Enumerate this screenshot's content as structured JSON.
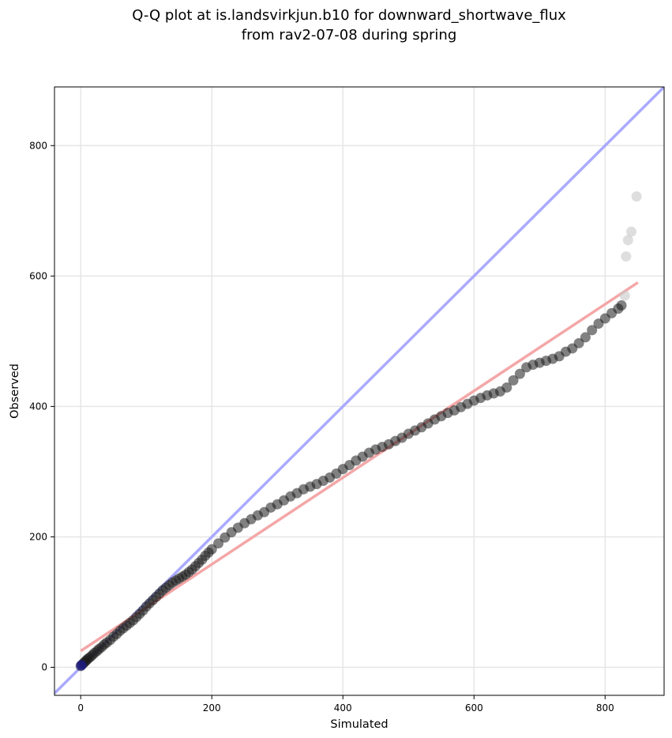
{
  "chart_data": {
    "type": "scatter",
    "title_lines": [
      "Q-Q plot at is.landsvirkjun.b10 for downward_shortwave_flux",
      "from rav2-07-08 during spring"
    ],
    "xlabel": "Simulated",
    "ylabel": "Observed",
    "xlim": [
      -40,
      890
    ],
    "ylim": [
      -43,
      890
    ],
    "x_ticks": [
      0,
      200,
      400,
      600,
      800
    ],
    "y_ticks": [
      0,
      200,
      400,
      600,
      800
    ],
    "grid": true,
    "reference_lines": [
      {
        "kind": "identity",
        "color": "#aaaaff",
        "points": [
          [
            -40,
            -40
          ],
          [
            890,
            890
          ]
        ]
      },
      {
        "kind": "fit",
        "color": "#f4a7a7",
        "points": [
          [
            0,
            25
          ],
          [
            850,
            590
          ]
        ]
      }
    ],
    "series": [
      {
        "color": "#1a1a1a",
        "points": [
          [
            0,
            2
          ],
          [
            2,
            4
          ],
          [
            4,
            6
          ],
          [
            6,
            8
          ],
          [
            8,
            10
          ],
          [
            10,
            12
          ],
          [
            12,
            14
          ],
          [
            15,
            16
          ],
          [
            18,
            19
          ],
          [
            21,
            22
          ],
          [
            25,
            25
          ],
          [
            28,
            28
          ],
          [
            32,
            31
          ],
          [
            36,
            35
          ],
          [
            40,
            38
          ],
          [
            45,
            42
          ],
          [
            50,
            47
          ],
          [
            55,
            51
          ],
          [
            60,
            56
          ],
          [
            65,
            60
          ],
          [
            70,
            64
          ],
          [
            75,
            68
          ],
          [
            80,
            72
          ],
          [
            85,
            77
          ],
          [
            90,
            82
          ],
          [
            95,
            87
          ],
          [
            100,
            93
          ],
          [
            105,
            98
          ],
          [
            110,
            103
          ],
          [
            115,
            108
          ],
          [
            120,
            113
          ],
          [
            125,
            118
          ],
          [
            130,
            122
          ],
          [
            135,
            126
          ],
          [
            140,
            130
          ],
          [
            145,
            133
          ],
          [
            150,
            136
          ],
          [
            155,
            139
          ],
          [
            160,
            142
          ],
          [
            165,
            146
          ],
          [
            170,
            150
          ],
          [
            175,
            155
          ],
          [
            180,
            160
          ],
          [
            185,
            165
          ],
          [
            190,
            171
          ],
          [
            195,
            176
          ],
          [
            200,
            181
          ],
          [
            210,
            190
          ],
          [
            220,
            199
          ],
          [
            230,
            207
          ],
          [
            240,
            214
          ],
          [
            250,
            221
          ],
          [
            260,
            227
          ],
          [
            270,
            233
          ],
          [
            280,
            238
          ],
          [
            290,
            245
          ],
          [
            300,
            250
          ],
          [
            310,
            256
          ],
          [
            320,
            262
          ],
          [
            330,
            267
          ],
          [
            340,
            273
          ],
          [
            350,
            277
          ],
          [
            360,
            281
          ],
          [
            370,
            286
          ],
          [
            380,
            291
          ],
          [
            390,
            297
          ],
          [
            400,
            304
          ],
          [
            410,
            310
          ],
          [
            420,
            317
          ],
          [
            430,
            323
          ],
          [
            440,
            329
          ],
          [
            450,
            334
          ],
          [
            460,
            338
          ],
          [
            470,
            342
          ],
          [
            480,
            347
          ],
          [
            490,
            352
          ],
          [
            500,
            358
          ],
          [
            510,
            363
          ],
          [
            520,
            368
          ],
          [
            530,
            374
          ],
          [
            540,
            380
          ],
          [
            550,
            385
          ],
          [
            560,
            390
          ],
          [
            570,
            394
          ],
          [
            580,
            399
          ],
          [
            590,
            404
          ],
          [
            600,
            409
          ],
          [
            610,
            413
          ],
          [
            620,
            417
          ],
          [
            630,
            420
          ],
          [
            640,
            423
          ],
          [
            650,
            429
          ],
          [
            660,
            440
          ],
          [
            670,
            450
          ],
          [
            680,
            460
          ],
          [
            690,
            464
          ],
          [
            700,
            467
          ],
          [
            710,
            470
          ],
          [
            720,
            473
          ],
          [
            730,
            477
          ],
          [
            740,
            484
          ],
          [
            750,
            489
          ],
          [
            760,
            497
          ],
          [
            770,
            506
          ],
          [
            780,
            517
          ],
          [
            790,
            527
          ],
          [
            800,
            535
          ],
          [
            810,
            543
          ],
          [
            820,
            550
          ],
          [
            825,
            555
          ]
        ]
      }
    ],
    "outliers": [
      [
        830,
        570
      ],
      [
        832,
        630
      ],
      [
        835,
        655
      ],
      [
        840,
        668
      ],
      [
        848,
        722
      ]
    ]
  }
}
